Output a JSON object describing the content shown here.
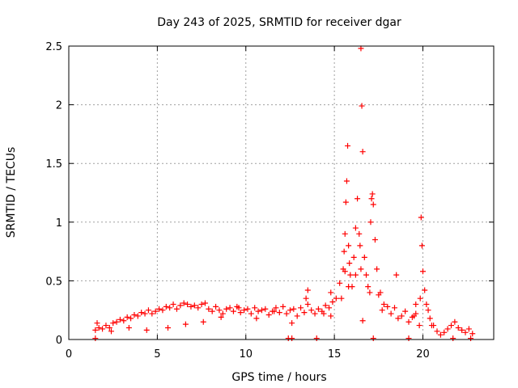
{
  "chart_data": {
    "type": "scatter",
    "title": "Day 243 of 2025, SRMTID for receiver dgar",
    "xlabel": "GPS time / hours",
    "ylabel": "SRMTID / TECUs",
    "xlim": [
      0,
      24
    ],
    "ylim": [
      0,
      2.5
    ],
    "xticks": [
      0,
      5,
      10,
      15,
      20
    ],
    "xtick_labels": [
      "0",
      "5",
      "10",
      "15",
      "20"
    ],
    "yticks": [
      0,
      0.5,
      1,
      1.5,
      2,
      2.5
    ],
    "ytick_labels": [
      "0",
      "0.5",
      "1",
      "1.5",
      "2",
      "2.5"
    ],
    "grid": true,
    "marker": "+",
    "colors": {
      "points": "#ff0000",
      "axes": "#000000",
      "grid": "#a0a0a0"
    },
    "series": [
      {
        "name": "SRMTID",
        "x": [
          1.5,
          1.7,
          1.9,
          2.1,
          2.3,
          2.5,
          2.7,
          2.9,
          3.1,
          3.3,
          3.5,
          3.7,
          3.9,
          4.1,
          4.3,
          4.5,
          4.7,
          4.9,
          5.1,
          5.3,
          5.5,
          5.7,
          5.9,
          6.1,
          6.3,
          6.5,
          6.7,
          6.9,
          7.1,
          7.3,
          7.5,
          7.7,
          7.9,
          8.1,
          8.3,
          8.5,
          8.7,
          8.9,
          9.1,
          9.3,
          9.5,
          9.7,
          9.9,
          10.1,
          10.3,
          10.5,
          10.7,
          10.9,
          11.1,
          11.3,
          11.5,
          11.7,
          11.9,
          12.1,
          12.3,
          12.5,
          12.7,
          12.9,
          13.1,
          13.3,
          13.5,
          13.7,
          13.9,
          14.1,
          14.3,
          14.5,
          14.7,
          14.9,
          15.1,
          15.3,
          15.5,
          15.55,
          15.6,
          15.65,
          15.7,
          15.75,
          15.8,
          15.85,
          15.9,
          16.0,
          16.1,
          16.2,
          16.3,
          16.4,
          16.45,
          16.5,
          16.55,
          16.6,
          16.7,
          16.8,
          16.9,
          17.0,
          17.05,
          17.1,
          17.15,
          17.2,
          17.3,
          17.4,
          17.6,
          17.8,
          18.0,
          18.2,
          18.4,
          18.6,
          18.8,
          19.0,
          19.2,
          19.4,
          19.6,
          19.8,
          19.85,
          19.9,
          19.95,
          20.0,
          20.1,
          20.2,
          20.3,
          20.4,
          20.6,
          20.8,
          21.0,
          21.2,
          21.4,
          21.6,
          21.8,
          22.0,
          22.2,
          22.4,
          22.6,
          22.8,
          1.6,
          2.4,
          3.4,
          4.4,
          5.6,
          6.6,
          7.6,
          8.6,
          9.6,
          10.6,
          11.6,
          12.6,
          13.4,
          14.4,
          16.6,
          17.5,
          18.5,
          19.5,
          20.5,
          12.4,
          12.6,
          14.0,
          17.2,
          1.5,
          19.2,
          21.7,
          22.7,
          13.5,
          14.8,
          14.8,
          15.8,
          16.2,
          16.5,
          15.4,
          15.6,
          17.7,
          19.6
        ],
        "y": [
          0.08,
          0.1,
          0.09,
          0.12,
          0.1,
          0.14,
          0.15,
          0.17,
          0.16,
          0.19,
          0.18,
          0.21,
          0.2,
          0.23,
          0.22,
          0.25,
          0.22,
          0.24,
          0.26,
          0.25,
          0.28,
          0.27,
          0.3,
          0.26,
          0.29,
          0.31,
          0.3,
          0.28,
          0.29,
          0.27,
          0.3,
          0.31,
          0.26,
          0.24,
          0.28,
          0.25,
          0.22,
          0.26,
          0.27,
          0.24,
          0.28,
          0.23,
          0.25,
          0.26,
          0.22,
          0.27,
          0.24,
          0.25,
          0.26,
          0.21,
          0.24,
          0.27,
          0.23,
          0.28,
          0.22,
          0.25,
          0.26,
          0.2,
          0.27,
          0.23,
          0.3,
          0.25,
          0.22,
          0.26,
          0.24,
          0.29,
          0.27,
          0.32,
          0.35,
          0.48,
          0.6,
          0.75,
          0.9,
          1.17,
          1.35,
          1.65,
          0.8,
          0.65,
          0.55,
          0.45,
          0.7,
          0.95,
          1.2,
          0.9,
          0.8,
          2.48,
          1.99,
          1.6,
          0.7,
          0.55,
          0.45,
          0.4,
          1.0,
          1.2,
          1.24,
          1.15,
          0.85,
          0.6,
          0.4,
          0.3,
          0.28,
          0.22,
          0.27,
          0.18,
          0.2,
          0.24,
          0.15,
          0.19,
          0.22,
          0.12,
          0.35,
          1.04,
          0.8,
          0.58,
          0.42,
          0.3,
          0.25,
          0.18,
          0.12,
          0.07,
          0.04,
          0.06,
          0.09,
          0.12,
          0.15,
          0.1,
          0.08,
          0.06,
          0.09,
          0.05,
          0.14,
          0.07,
          0.1,
          0.08,
          0.1,
          0.13,
          0.15,
          0.19,
          0.27,
          0.18,
          0.24,
          0.14,
          0.35,
          0.22,
          0.16,
          0.38,
          0.55,
          0.2,
          0.12,
          0.01,
          0.01,
          0.01,
          0.01,
          0.01,
          0.01,
          0.01,
          0.01,
          0.42,
          0.2,
          0.4,
          0.45,
          0.55,
          0.6,
          0.35,
          0.58,
          0.25,
          0.3
        ]
      }
    ]
  }
}
